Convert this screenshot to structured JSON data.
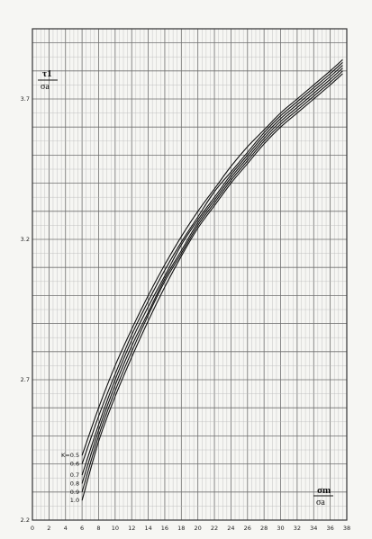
{
  "chart_data": {
    "type": "line",
    "ylabel_numerator": "τ1",
    "ylabel_denominator": "σa",
    "xlabel_numerator": "σm",
    "xlabel_denominator": "σa",
    "xlim": [
      0,
      38
    ],
    "ylim": [
      2.2,
      3.95
    ],
    "x_ticks": [
      0,
      2,
      4,
      6,
      8,
      10,
      12,
      14,
      16,
      18,
      20,
      22,
      24,
      26,
      28,
      30,
      32,
      34,
      36,
      38
    ],
    "x_tick_labels": [
      "0",
      "2",
      "4",
      "6",
      "8",
      "10",
      "12",
      "14",
      "16",
      "18",
      "20",
      "22",
      "24",
      "26",
      "28",
      "30",
      "32",
      "34",
      "36",
      "38"
    ],
    "y_ticks": [
      2.2,
      2.7,
      3.2,
      3.7
    ],
    "y_tick_labels": [
      "2.2",
      "2.7",
      "3.2",
      "3.7"
    ],
    "grid": true,
    "series": [
      {
        "name": "K=0.5",
        "label": "K=0.5",
        "x": [
          6,
          8,
          10,
          12,
          14,
          16,
          18,
          20,
          22,
          24,
          26,
          28,
          30,
          32,
          34,
          36,
          37.5
        ],
        "y": [
          2.43,
          2.6,
          2.75,
          2.88,
          3.0,
          3.11,
          3.21,
          3.3,
          3.38,
          3.46,
          3.53,
          3.59,
          3.65,
          3.7,
          3.75,
          3.8,
          3.84
        ]
      },
      {
        "name": "0.6",
        "label": "0.6",
        "x": [
          6,
          8,
          10,
          12,
          14,
          16,
          18,
          20,
          22,
          24,
          26,
          28,
          30,
          32,
          34,
          36,
          37.5
        ],
        "y": [
          2.4,
          2.57,
          2.72,
          2.86,
          2.98,
          3.09,
          3.19,
          3.28,
          3.37,
          3.44,
          3.51,
          3.58,
          3.64,
          3.69,
          3.74,
          3.79,
          3.83
        ]
      },
      {
        "name": "0.7",
        "label": "0.7",
        "x": [
          6,
          8,
          10,
          12,
          14,
          16,
          18,
          20,
          22,
          24,
          26,
          28,
          30,
          32,
          34,
          36,
          37.5
        ],
        "y": [
          2.36,
          2.54,
          2.7,
          2.84,
          2.96,
          3.07,
          3.18,
          3.27,
          3.35,
          3.43,
          3.5,
          3.57,
          3.63,
          3.68,
          3.73,
          3.78,
          3.82
        ]
      },
      {
        "name": "0.8",
        "label": "0.8",
        "x": [
          6,
          8,
          10,
          12,
          14,
          16,
          18,
          20,
          22,
          24,
          26,
          28,
          30,
          32,
          34,
          36,
          37.5
        ],
        "y": [
          2.33,
          2.52,
          2.68,
          2.82,
          2.94,
          3.06,
          3.16,
          3.26,
          3.34,
          3.42,
          3.49,
          3.56,
          3.62,
          3.67,
          3.72,
          3.77,
          3.81
        ]
      },
      {
        "name": "0.9",
        "label": "0.9",
        "x": [
          6,
          8,
          10,
          12,
          14,
          16,
          18,
          20,
          22,
          24,
          26,
          28,
          30,
          32,
          34,
          36,
          37.5
        ],
        "y": [
          2.3,
          2.5,
          2.66,
          2.8,
          2.93,
          3.05,
          3.15,
          3.25,
          3.33,
          3.41,
          3.48,
          3.55,
          3.61,
          3.66,
          3.71,
          3.76,
          3.8
        ]
      },
      {
        "name": "1.0",
        "label": "1.0",
        "x": [
          6,
          8,
          10,
          12,
          14,
          16,
          18,
          20,
          22,
          24,
          26,
          28,
          30,
          32,
          34,
          36,
          37.5
        ],
        "y": [
          2.27,
          2.48,
          2.64,
          2.78,
          2.91,
          3.03,
          3.14,
          3.24,
          3.32,
          3.4,
          3.47,
          3.54,
          3.6,
          3.65,
          3.7,
          3.75,
          3.79
        ]
      }
    ],
    "colors": {
      "major_grid": "#6f6f6f",
      "minor_grid": "#b8b8b8",
      "curve": "#111111",
      "paper": "#f6f6f3"
    }
  }
}
